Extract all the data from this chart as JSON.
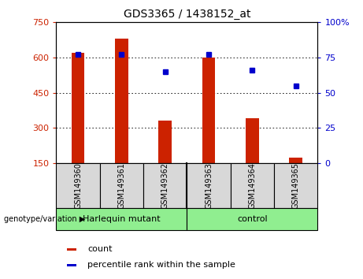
{
  "title": "GDS3365 / 1438152_at",
  "samples": [
    "GSM149360",
    "GSM149361",
    "GSM149362",
    "GSM149363",
    "GSM149364",
    "GSM149365"
  ],
  "counts": [
    620,
    680,
    330,
    600,
    340,
    175
  ],
  "percentiles": [
    77,
    77,
    65,
    77,
    66,
    55
  ],
  "ylim_left": [
    150,
    750
  ],
  "ylim_right": [
    0,
    100
  ],
  "yticks_left": [
    150,
    300,
    450,
    600,
    750
  ],
  "yticks_right": [
    0,
    25,
    50,
    75,
    100
  ],
  "bar_color": "#cc2200",
  "dot_color": "#0000cc",
  "group1_label": "Harlequin mutant",
  "group2_label": "control",
  "group1_color": "#90ee90",
  "group2_color": "#90ee90",
  "genotype_label": "genotype/variation",
  "legend_count": "count",
  "legend_percentile": "percentile rank within the sample",
  "separator_index": 3,
  "sample_bg": "#d8d8d8",
  "bar_width": 0.3
}
